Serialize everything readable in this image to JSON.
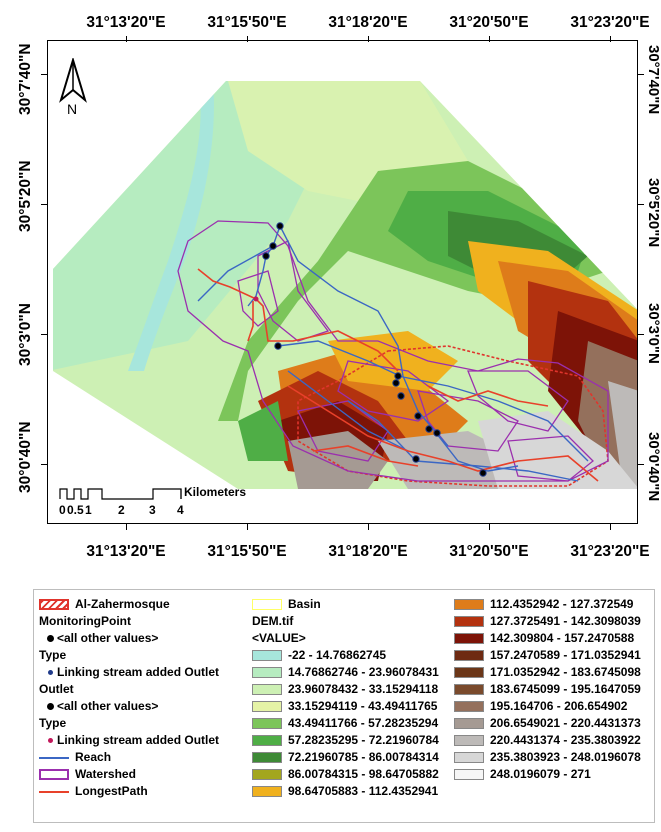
{
  "lon_labels_top": [
    "31°13'20\"E",
    "31°15'50\"E",
    "31°18'20\"E",
    "31°20'50\"E",
    "31°23'20\"E"
  ],
  "lon_labels_bottom": [
    "31°13'20\"E",
    "31°15'50\"E",
    "31°18'20\"E",
    "31°20'50\"E",
    "31°23'20\"E"
  ],
  "lat_labels_left": [
    "30°7'40\"N",
    "30°5'20\"N",
    "30°3'0\"N",
    "30°0'40\"N"
  ],
  "lat_labels_right": [
    "30°7'40\"N",
    "30°5'20\"N",
    "30°3'0\"N",
    "30°0'40\"N"
  ],
  "north_arrow": {
    "label": "N"
  },
  "scale_bar": {
    "ticks": [
      "0",
      "0.5",
      "1",
      "2",
      "3",
      "4"
    ],
    "unit": "Kilometers"
  },
  "legend": {
    "col1": [
      {
        "kind": "hatch",
        "label": "Al-Zahermosque",
        "color": "#e0342c"
      },
      {
        "kind": "heading",
        "label": "MonitoringPoint"
      },
      {
        "kind": "dot",
        "label": "<all other values>",
        "color": "#000000"
      },
      {
        "kind": "heading",
        "label": "Type"
      },
      {
        "kind": "dot-small",
        "label": "Linking stream added Outlet",
        "color": "#1f3a8a"
      },
      {
        "kind": "heading",
        "label": "Outlet"
      },
      {
        "kind": "dot",
        "label": "<all other values>",
        "color": "#000000"
      },
      {
        "kind": "heading",
        "label": "Type"
      },
      {
        "kind": "dot-small",
        "label": "Linking stream added Outlet",
        "color": "#c2185b"
      },
      {
        "kind": "line",
        "label": "Reach",
        "color": "#3b67c4"
      },
      {
        "kind": "box",
        "label": "Watershed",
        "color": "#9b2fae"
      },
      {
        "kind": "line",
        "label": "LongestPath",
        "color": "#e8412a"
      }
    ],
    "col2": [
      {
        "kind": "outline",
        "label": "Basin",
        "color": "#ffff66"
      },
      {
        "kind": "heading",
        "label": "DEM.tif"
      },
      {
        "kind": "heading",
        "label": "<VALUE>"
      },
      {
        "kind": "fill",
        "label": "-22 - 14.76862745",
        "color": "#a7e6dc"
      },
      {
        "kind": "fill",
        "label": "14.76862746 - 23.96078431",
        "color": "#b6ecc0"
      },
      {
        "kind": "fill",
        "label": "23.96078432 - 33.15294118",
        "color": "#cdf0b4"
      },
      {
        "kind": "fill",
        "label": "33.15294119 - 43.49411765",
        "color": "#e5f3a6"
      },
      {
        "kind": "fill",
        "label": "43.49411766 - 57.28235294",
        "color": "#7cc55a"
      },
      {
        "kind": "fill",
        "label": "57.28235295 - 72.21960784",
        "color": "#4fae46"
      },
      {
        "kind": "fill",
        "label": "72.21960785 - 86.00784314",
        "color": "#3e8a36"
      },
      {
        "kind": "fill",
        "label": "86.00784315 - 98.64705882",
        "color": "#a3a61e"
      },
      {
        "kind": "fill",
        "label": "98.64705883 - 112.4352941",
        "color": "#f0b11e"
      }
    ],
    "col3": [
      {
        "kind": "fill",
        "label": "112.4352942 - 127.372549",
        "color": "#de7c1a"
      },
      {
        "kind": "fill",
        "label": "127.3725491 - 142.3098039",
        "color": "#b3320f"
      },
      {
        "kind": "fill",
        "label": "142.309804 - 157.2470588",
        "color": "#7d1307"
      },
      {
        "kind": "fill",
        "label": "157.2470589 - 171.0352941",
        "color": "#6e2a12"
      },
      {
        "kind": "fill",
        "label": "171.0352942 - 183.6745098",
        "color": "#6b3618"
      },
      {
        "kind": "fill",
        "label": "183.6745099 - 195.1647059",
        "color": "#7a4a2c"
      },
      {
        "kind": "fill",
        "label": "195.164706 - 206.654902",
        "color": "#94705c"
      },
      {
        "kind": "fill",
        "label": "206.6549021 - 220.4431373",
        "color": "#a59a93"
      },
      {
        "kind": "fill",
        "label": "220.4431374 - 235.3803922",
        "color": "#bdbab8"
      },
      {
        "kind": "fill",
        "label": "235.3803923 - 248.0196078",
        "color": "#d7d7d7"
      },
      {
        "kind": "fill",
        "label": "248.0196079 - 271",
        "color": "#f6f6f6"
      }
    ]
  }
}
